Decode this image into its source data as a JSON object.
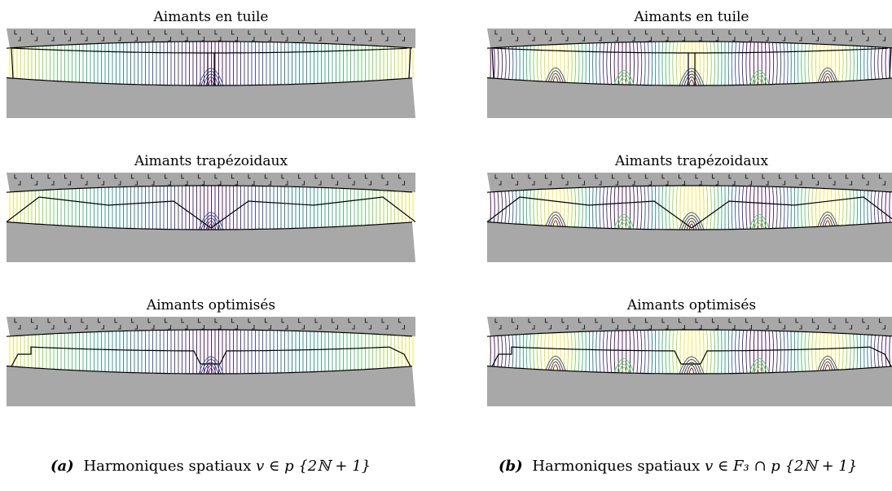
{
  "columns": [
    {
      "id": "a",
      "caption_tag": "(a)",
      "caption_text": "Harmoniques spatiaux",
      "caption_math": "v ∈ p {2ℕ + 1}",
      "panels": [
        {
          "title": "Aimants en tuile",
          "magnet": "tile"
        },
        {
          "title": "Aimants trapézoidaux",
          "magnet": "trap"
        },
        {
          "title": "Aimants optimisés",
          "magnet": "opt"
        }
      ]
    },
    {
      "id": "b",
      "caption_tag": "(b)",
      "caption_text": "Harmoniques spatiaux",
      "caption_math": "v ∈ F₃ ∩ p {2ℕ + 1}",
      "panels": [
        {
          "title": "Aimants en tuile",
          "magnet": "tile"
        },
        {
          "title": "Aimants trapézoidaux",
          "magnet": "trap"
        },
        {
          "title": "Aimants optimisés",
          "magnet": "opt"
        }
      ]
    }
  ],
  "colors": {
    "iron": "#a8a8a8",
    "field_palette": [
      "#440154",
      "#3b528b",
      "#21918c",
      "#5ec962",
      "#fde725"
    ]
  }
}
